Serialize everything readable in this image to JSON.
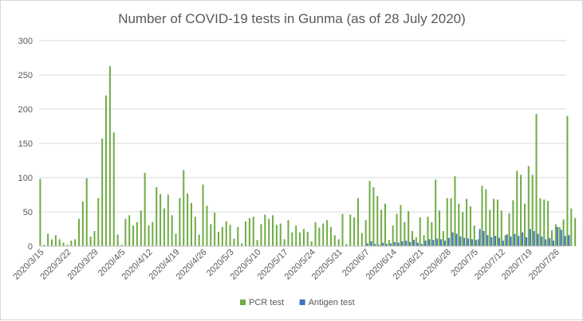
{
  "chart_data": {
    "type": "bar",
    "title": "Number of COVID-19 tests in Gunma (as of 28 July 2020)",
    "xlabel": "",
    "ylabel": "",
    "ylim": [
      0,
      300
    ],
    "yticks": [
      0,
      50,
      100,
      150,
      200,
      250,
      300
    ],
    "grid": true,
    "legend_position": "bottom",
    "x_tick_labels": [
      "2020/3/15",
      "2020/3/22",
      "2020/3/29",
      "2020/4/5",
      "2020/4/12",
      "2020/4/19",
      "2020/4/26",
      "2020/5/3",
      "2020/5/10",
      "2020/5/17",
      "2020/5/24",
      "2020/5/31",
      "2020/6/7",
      "2020/6/14",
      "2020/6/21",
      "2020/6/28",
      "2020/7/5",
      "2020/7/12",
      "2020/7/19",
      "2020/7/26"
    ],
    "x_start": "2020/3/15",
    "x_end": "2020/7/28",
    "series": [
      {
        "name": "PCR test",
        "color": "#70ad47",
        "values": [
          98,
          2,
          18,
          10,
          16,
          10,
          5,
          2,
          8,
          10,
          40,
          65,
          99,
          14,
          22,
          70,
          157,
          220,
          263,
          166,
          17,
          2,
          40,
          45,
          30,
          35,
          52,
          107,
          30,
          35,
          86,
          76,
          55,
          75,
          45,
          18,
          70,
          111,
          77,
          63,
          43,
          17,
          90,
          59,
          32,
          49,
          21,
          28,
          36,
          31,
          11,
          28,
          4,
          36,
          41,
          43,
          9,
          32,
          46,
          40,
          45,
          31,
          33,
          10,
          38,
          20,
          30,
          20,
          25,
          21,
          7,
          35,
          27,
          33,
          38,
          28,
          16,
          10,
          47,
          3,
          46,
          42,
          70,
          19,
          38,
          95,
          86,
          73,
          53,
          62,
          9,
          30,
          47,
          60,
          35,
          51,
          22,
          13,
          42,
          16,
          43,
          35,
          97,
          52,
          22,
          70,
          70,
          102,
          62,
          50,
          69,
          58,
          30,
          10,
          88,
          83,
          53,
          69,
          68,
          52,
          16,
          48,
          67,
          110,
          104,
          62,
          117,
          104,
          193,
          70,
          68,
          66,
          23,
          32,
          28,
          39,
          190,
          55,
          41
        ]
      },
      {
        "name": "Antigen test",
        "color": "#4472c4",
        "values": [
          0,
          0,
          0,
          0,
          0,
          0,
          0,
          0,
          0,
          0,
          0,
          0,
          0,
          0,
          0,
          0,
          0,
          0,
          0,
          0,
          0,
          0,
          0,
          0,
          0,
          0,
          0,
          0,
          0,
          0,
          0,
          0,
          0,
          0,
          0,
          0,
          0,
          0,
          0,
          0,
          0,
          0,
          0,
          0,
          0,
          0,
          0,
          0,
          0,
          0,
          0,
          0,
          0,
          0,
          0,
          0,
          0,
          0,
          0,
          0,
          0,
          0,
          0,
          0,
          0,
          0,
          0,
          0,
          0,
          0,
          0,
          0,
          0,
          0,
          0,
          0,
          0,
          0,
          0,
          0,
          0,
          0,
          0,
          0,
          4,
          7,
          3,
          2,
          5,
          3,
          4,
          6,
          5,
          7,
          8,
          6,
          9,
          5,
          3,
          8,
          10,
          9,
          11,
          10,
          8,
          12,
          20,
          18,
          14,
          12,
          11,
          10,
          9,
          25,
          22,
          16,
          13,
          15,
          12,
          8,
          17,
          14,
          18,
          15,
          20,
          13,
          25,
          22,
          18,
          14,
          10,
          12,
          8,
          28,
          24,
          15,
          16
        ]
      }
    ]
  }
}
